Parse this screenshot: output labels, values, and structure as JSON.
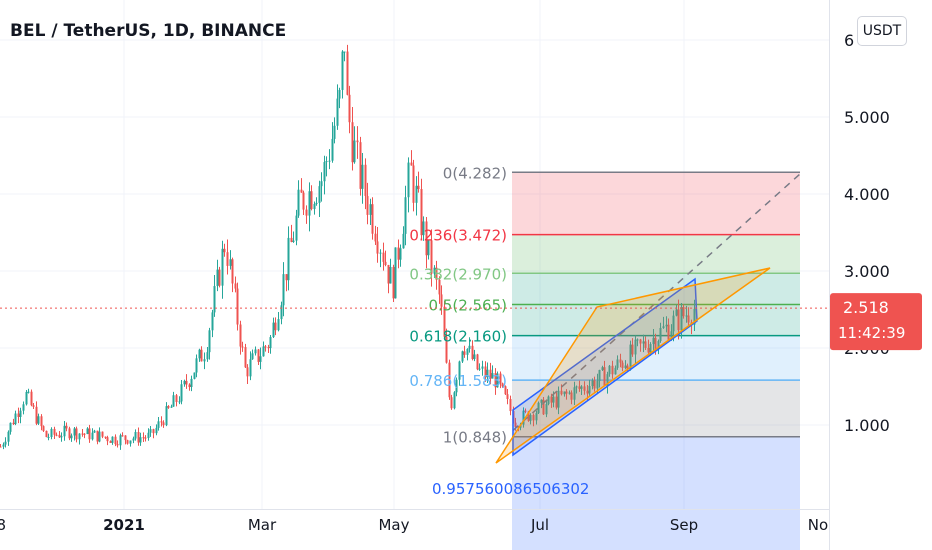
{
  "title": "BEL / TetherUS, 1D, BINANCE",
  "currency_button": "USDT",
  "colors": {
    "up": "#26a69a",
    "down": "#ef5350",
    "price_line": "#ef5350",
    "channel": "#2962ff",
    "triangle": "#ff9800",
    "trend_line": "#787b86"
  },
  "chart_data": {
    "type": "candlestick",
    "y_axis": {
      "ticks": [
        "1.000",
        "2.000",
        "3.000",
        "4.000",
        "5.000",
        "6"
      ],
      "scale": "linear",
      "position": "right"
    },
    "x_axis": {
      "ticks": [
        "8",
        "2021",
        "Mar",
        "May",
        "Jul",
        "Sep",
        "No"
      ]
    },
    "last_price": "2.518",
    "countdown": "11:42:39",
    "fib_retracement": {
      "levels": [
        {
          "label": "0(4.282)",
          "value": 4.282,
          "line_color": "#787b86",
          "zone_color": "#f23645"
        },
        {
          "label": "0.236(3.472)",
          "value": 3.472,
          "line_color": "#f23645",
          "zone_color": "#4caf50"
        },
        {
          "label": "0.382(2.970)",
          "value": 2.97,
          "line_color": "#81c784",
          "zone_color": "#089981"
        },
        {
          "label": "0.5(2.565)",
          "value": 2.565,
          "line_color": "#4caf50",
          "zone_color": "#089981"
        },
        {
          "label": "0.618(2.160)",
          "value": 2.16,
          "line_color": "#089981",
          "zone_color": "#64b5f6"
        },
        {
          "label": "0.786(1.583)",
          "value": 1.583,
          "line_color": "#64b5f6",
          "zone_color": "#787b86"
        },
        {
          "label": "1(0.848)",
          "value": 0.848,
          "line_color": "#787b86",
          "zone_color": "#2962ff"
        },
        {
          "label": "0.957560086506302",
          "value": null,
          "line_color": "#2962ff",
          "zone_color": null
        }
      ]
    },
    "series": [
      {
        "name": "BEL/USDT daily",
        "x_range": [
          "Dec 2020",
          "Sep 2021"
        ],
        "start": 0.72,
        "peak": 5.85,
        "low_after": 0.8,
        "last": 2.518
      }
    ]
  }
}
